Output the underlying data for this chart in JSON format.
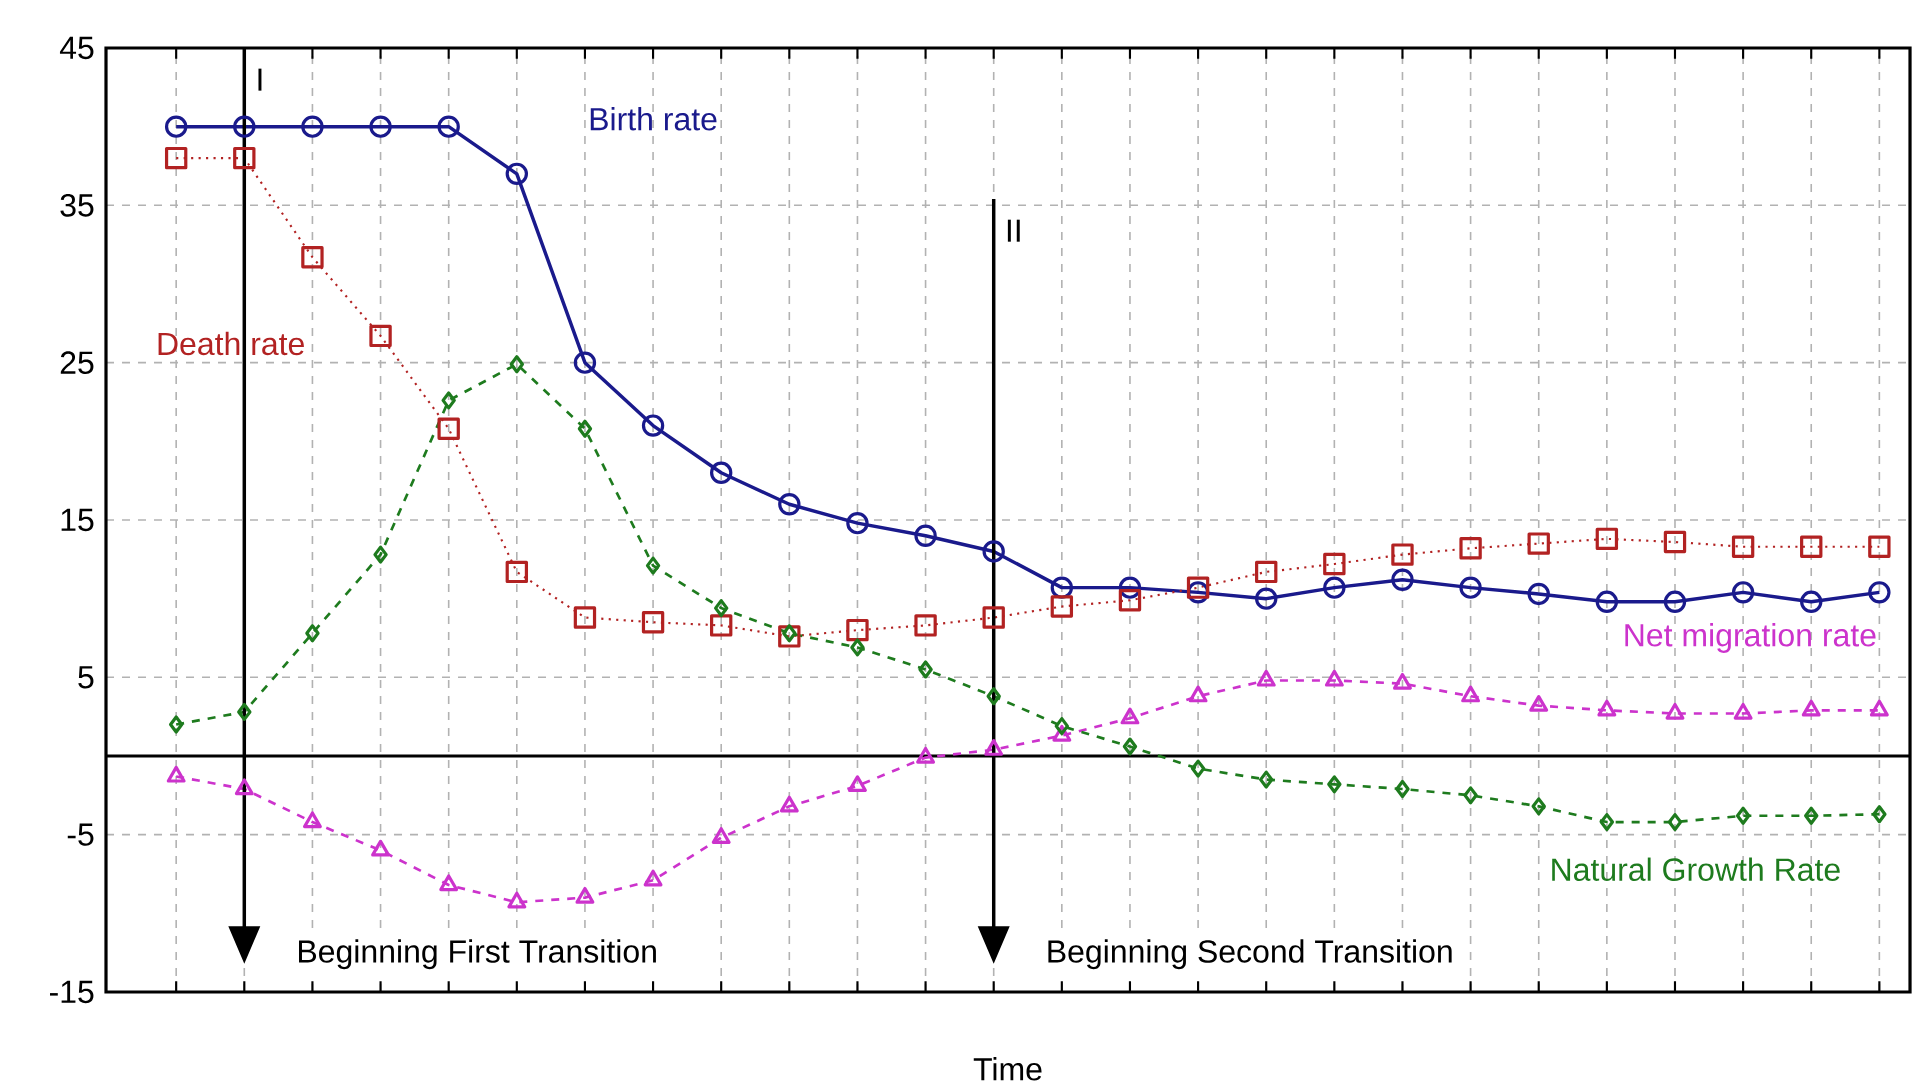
{
  "chart_data": {
    "type": "line",
    "xlabel": "Time",
    "categories": [
      null,
      null,
      null,
      null,
      null,
      null,
      null,
      null,
      null,
      null,
      null,
      null,
      null,
      null,
      null,
      null,
      null,
      null,
      null,
      null,
      null,
      null,
      null,
      null,
      null,
      null
    ],
    "series": [
      {
        "name": "Birth rate",
        "color": "#1a1a8c",
        "marker": "circle",
        "line_style": "solid",
        "values": [
          40,
          40,
          40,
          40,
          40,
          37,
          25,
          21,
          18,
          16,
          14.8,
          14,
          13,
          10.7,
          10.7,
          10.4,
          10,
          10.7,
          11.2,
          10.7,
          10.3,
          9.8,
          9.8,
          10.4,
          9.8,
          10.4
        ]
      },
      {
        "name": "Death rate",
        "color": "#b22222",
        "marker": "square",
        "line_style": "dotted",
        "values": [
          38,
          38,
          31.7,
          26.7,
          20.8,
          11.7,
          8.8,
          8.5,
          8.3,
          7.6,
          8,
          8.3,
          8.8,
          9.5,
          9.9,
          10.7,
          11.7,
          12.2,
          12.8,
          13.2,
          13.5,
          13.8,
          13.6,
          13.3,
          13.3,
          13.3
        ]
      },
      {
        "name": "Net migration rate",
        "color": "#cc33cc",
        "marker": "triangle",
        "line_style": "dashed",
        "values": [
          -1.3,
          -2.1,
          -4.2,
          -6,
          -8.2,
          -9.3,
          -9,
          -7.9,
          -5.2,
          -3.2,
          -1.9,
          -0.1,
          0.4,
          1.3,
          2.4,
          3.8,
          4.8,
          4.8,
          4.6,
          3.8,
          3.2,
          2.9,
          2.7,
          2.7,
          2.9,
          2.9
        ]
      },
      {
        "name": "Natural Growth Rate",
        "color": "#1e7b1e",
        "marker": "diamond",
        "line_style": "dashed",
        "values": [
          2,
          2.8,
          7.8,
          12.8,
          22.6,
          24.9,
          20.8,
          12.1,
          9.4,
          7.8,
          6.9,
          5.5,
          3.8,
          1.9,
          0.6,
          -0.8,
          -1.5,
          -1.8,
          -2.1,
          -2.5,
          -3.2,
          -4.2,
          -4.2,
          -3.8,
          -3.8,
          -3.7
        ]
      }
    ],
    "ylim": [
      -15,
      45
    ],
    "yticks": [
      -15,
      -5,
      5,
      15,
      25,
      35,
      45
    ],
    "grid": true,
    "tick_labels": "y",
    "ref_lines": [
      {
        "axis": "y",
        "value": 0
      }
    ],
    "annotations": [
      "I",
      "Beginning First Transition",
      "II",
      "Beginning Second Transition"
    ]
  }
}
